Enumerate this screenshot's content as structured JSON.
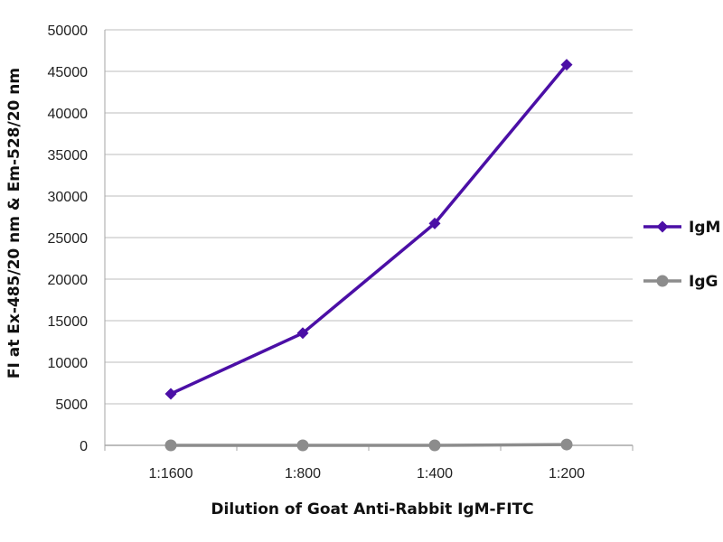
{
  "chart_data": {
    "type": "line",
    "categories": [
      "1:1600",
      "1:800",
      "1:400",
      "1:200"
    ],
    "series": [
      {
        "name": "IgM",
        "values": [
          6200,
          13500,
          26700,
          45800
        ],
        "color": "#4b0fa6",
        "marker": "diamond"
      },
      {
        "name": "IgG",
        "values": [
          0,
          0,
          0,
          100
        ],
        "color": "#8c8c8c",
        "marker": "circle"
      }
    ],
    "xlabel": "Dilution of Goat Anti-Rabbit IgM-FITC",
    "ylabel": "FI at Ex-485/20 nm & Em-528/20 nm",
    "ylim": [
      0,
      50000
    ],
    "yticks": [
      0,
      5000,
      10000,
      15000,
      20000,
      25000,
      30000,
      35000,
      40000,
      45000,
      50000
    ],
    "grid": true,
    "legend": "right"
  }
}
